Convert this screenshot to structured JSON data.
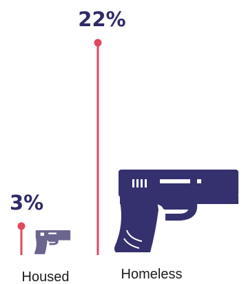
{
  "chart_data": {
    "type": "bar",
    "categories": [
      "Housed",
      "Homeless"
    ],
    "values": [
      3,
      22
    ],
    "value_labels": [
      "3%",
      "22%"
    ],
    "unit": "%",
    "ylim": [
      0,
      22
    ],
    "colors": {
      "stem": "#e0485e",
      "label": "#2f2a68",
      "icon": "#35306e"
    },
    "marker_icon": "handgun-icon"
  }
}
